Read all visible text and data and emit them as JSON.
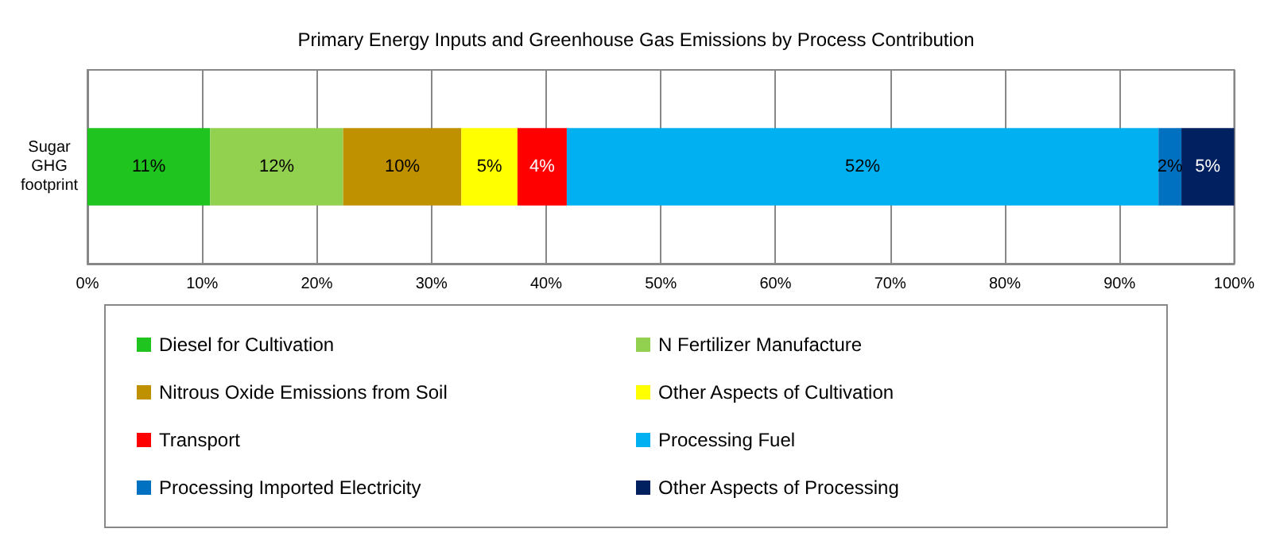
{
  "chart_data": {
    "type": "bar",
    "orientation": "horizontal",
    "stacked": true,
    "title": "Primary Energy Inputs and Greenhouse Gas Emissions by Process Contribution",
    "categories": [
      "Sugar\nGHG\nfootprint"
    ],
    "series": [
      {
        "name": "Diesel for Cultivation",
        "color": "#1fc41f",
        "values": [
          10.7
        ],
        "value_labels": [
          "11%"
        ]
      },
      {
        "name": "N Fertilizer Manufacture",
        "color": "#92d050",
        "values": [
          11.6
        ],
        "value_labels": [
          "12%"
        ]
      },
      {
        "name": "Nitrous Oxide Emissions from Soil",
        "color": "#bf9000",
        "values": [
          10.3
        ],
        "value_labels": [
          "10%"
        ]
      },
      {
        "name": "Other Aspects of Cultivation",
        "color": "#ffff00",
        "values": [
          4.9
        ],
        "value_labels": [
          "5%"
        ]
      },
      {
        "name": "Transport",
        "color": "#ff0000",
        "values": [
          4.3
        ],
        "value_labels": [
          "4%"
        ]
      },
      {
        "name": "Processing Fuel",
        "color": "#00b0f0",
        "values": [
          51.6
        ],
        "value_labels": [
          "52%"
        ]
      },
      {
        "name": "Processing Imported Electricity",
        "color": "#0070c0",
        "values": [
          2.0
        ],
        "value_labels": [
          "2%"
        ]
      },
      {
        "name": "Other Aspects of Processing",
        "color": "#002060",
        "values": [
          4.6
        ],
        "value_labels": [
          "5%"
        ]
      }
    ],
    "xlim": [
      0,
      100
    ],
    "xticks": [
      {
        "value": 0,
        "label": "0%"
      },
      {
        "value": 10,
        "label": "10%"
      },
      {
        "value": 20,
        "label": "20%"
      },
      {
        "value": 30,
        "label": "30%"
      },
      {
        "value": 40,
        "label": "40%"
      },
      {
        "value": 50,
        "label": "50%"
      },
      {
        "value": 60,
        "label": "60%"
      },
      {
        "value": 70,
        "label": "70%"
      },
      {
        "value": 80,
        "label": "80%"
      },
      {
        "value": 90,
        "label": "90%"
      },
      {
        "value": 100,
        "label": "100%"
      }
    ],
    "grid": "x",
    "legend": "bottom"
  }
}
